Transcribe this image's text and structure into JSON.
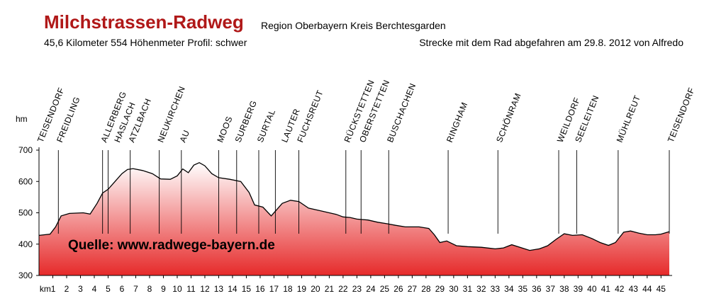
{
  "header": {
    "title": "Milchstrassen-Radweg",
    "region": "Region Oberbayern Kreis Berchtesgarden",
    "stats": "45,6 Kilometer  554 Höhenmeter  Profil: schwer",
    "note": "Strecke mit dem Rad abgefahren am 29.8. 2012 von Alfredo"
  },
  "source_label": "Quelle: www.radwege-bayern.de",
  "colors": {
    "title": "#b01818",
    "fill_top": "#e62a2a",
    "fill_bottom": "#ffffff"
  },
  "chart_data": {
    "type": "area",
    "title": "",
    "xlabel": "km",
    "ylabel": "hm",
    "xlim": [
      0,
      45.6
    ],
    "ylim": [
      300,
      700
    ],
    "y_ticks": [
      300,
      400,
      500,
      600,
      700
    ],
    "x_ticks": [
      "km1",
      "2",
      "3",
      "4",
      "5",
      "6",
      "7",
      "8",
      "9",
      "10",
      "11",
      "12",
      "13",
      "14",
      "15",
      "16",
      "17",
      "18",
      "19",
      "20",
      "21",
      "22",
      "23",
      "24",
      "25",
      "26",
      "27",
      "28",
      "29",
      "30",
      "31",
      "32",
      "33",
      "34",
      "35",
      "36",
      "37",
      "38",
      "39",
      "40",
      "41",
      "42",
      "43",
      "44",
      "45"
    ],
    "grid": false,
    "elevation": [
      [
        0,
        428
      ],
      [
        0.8,
        432
      ],
      [
        1.2,
        455
      ],
      [
        1.6,
        490
      ],
      [
        2.2,
        498
      ],
      [
        3.2,
        500
      ],
      [
        3.7,
        496
      ],
      [
        4.2,
        530
      ],
      [
        4.6,
        563
      ],
      [
        5.0,
        575
      ],
      [
        5.5,
        600
      ],
      [
        6.0,
        625
      ],
      [
        6.4,
        638
      ],
      [
        6.8,
        641
      ],
      [
        7.5,
        635
      ],
      [
        8.2,
        625
      ],
      [
        8.8,
        608
      ],
      [
        9.5,
        607
      ],
      [
        10.0,
        618
      ],
      [
        10.4,
        640
      ],
      [
        10.8,
        628
      ],
      [
        11.2,
        652
      ],
      [
        11.6,
        660
      ],
      [
        12.0,
        650
      ],
      [
        12.5,
        625
      ],
      [
        13.0,
        612
      ],
      [
        13.8,
        607
      ],
      [
        14.6,
        600
      ],
      [
        15.2,
        565
      ],
      [
        15.6,
        525
      ],
      [
        16.2,
        518
      ],
      [
        16.8,
        490
      ],
      [
        17.2,
        510
      ],
      [
        17.6,
        530
      ],
      [
        18.2,
        540
      ],
      [
        18.8,
        536
      ],
      [
        19.5,
        515
      ],
      [
        20.3,
        507
      ],
      [
        21.0,
        500
      ],
      [
        21.5,
        495
      ],
      [
        22.0,
        487
      ],
      [
        22.5,
        485
      ],
      [
        23.0,
        480
      ],
      [
        23.8,
        477
      ],
      [
        24.5,
        470
      ],
      [
        25.2,
        465
      ],
      [
        25.8,
        460
      ],
      [
        26.5,
        455
      ],
      [
        27.5,
        455
      ],
      [
        28.2,
        450
      ],
      [
        28.6,
        430
      ],
      [
        29.0,
        405
      ],
      [
        29.5,
        410
      ],
      [
        30.2,
        395
      ],
      [
        31.0,
        392
      ],
      [
        32.0,
        390
      ],
      [
        33.0,
        385
      ],
      [
        33.6,
        388
      ],
      [
        34.2,
        398
      ],
      [
        34.8,
        390
      ],
      [
        35.5,
        380
      ],
      [
        36.2,
        385
      ],
      [
        36.8,
        395
      ],
      [
        37.4,
        415
      ],
      [
        38.0,
        433
      ],
      [
        38.6,
        428
      ],
      [
        39.3,
        430
      ],
      [
        40.0,
        418
      ],
      [
        40.6,
        405
      ],
      [
        41.2,
        396
      ],
      [
        41.7,
        405
      ],
      [
        42.3,
        438
      ],
      [
        42.8,
        442
      ],
      [
        43.4,
        435
      ],
      [
        44.0,
        430
      ],
      [
        44.6,
        430
      ],
      [
        45.0,
        432
      ],
      [
        45.6,
        440
      ]
    ],
    "places": [
      {
        "name": "TEISENDORF",
        "km": 0.0,
        "row": 0
      },
      {
        "name": "FREIDLING",
        "km": 1.4,
        "row": 0
      },
      {
        "name": "ALLERBERG",
        "km": 4.6,
        "row": 0
      },
      {
        "name": "HASLACH",
        "km": 5.0,
        "row": 1
      },
      {
        "name": "ATZLBACH",
        "km": 6.6,
        "row": 0
      },
      {
        "name": "NEUKIRCHEN",
        "km": 8.7,
        "row": 0
      },
      {
        "name": "AU",
        "km": 10.3,
        "row": 0
      },
      {
        "name": "MOOS",
        "km": 13.0,
        "row": 0
      },
      {
        "name": "SURBERG",
        "km": 14.3,
        "row": 0
      },
      {
        "name": "SURTAL",
        "km": 15.9,
        "row": 0
      },
      {
        "name": "LAUTER",
        "km": 17.1,
        "row": 1
      },
      {
        "name": "FUCHSREUT",
        "km": 18.8,
        "row": 0
      },
      {
        "name": "RÜCKSTETTEN",
        "km": 22.2,
        "row": 0
      },
      {
        "name": "OBERSTETTEN",
        "km": 23.3,
        "row": 0
      },
      {
        "name": "BUSCHACHEN",
        "km": 25.3,
        "row": 0
      },
      {
        "name": "RINGHAM",
        "km": 29.6,
        "row": 0
      },
      {
        "name": "SCHÖNRAM",
        "km": 33.2,
        "row": 0
      },
      {
        "name": "WEILDORF",
        "km": 37.6,
        "row": 0
      },
      {
        "name": "SEELEITEN",
        "km": 38.9,
        "row": 0
      },
      {
        "name": "MÜHLREUT",
        "km": 41.9,
        "row": 0
      },
      {
        "name": "TEISENDORF",
        "km": 45.6,
        "row": 0
      }
    ]
  }
}
